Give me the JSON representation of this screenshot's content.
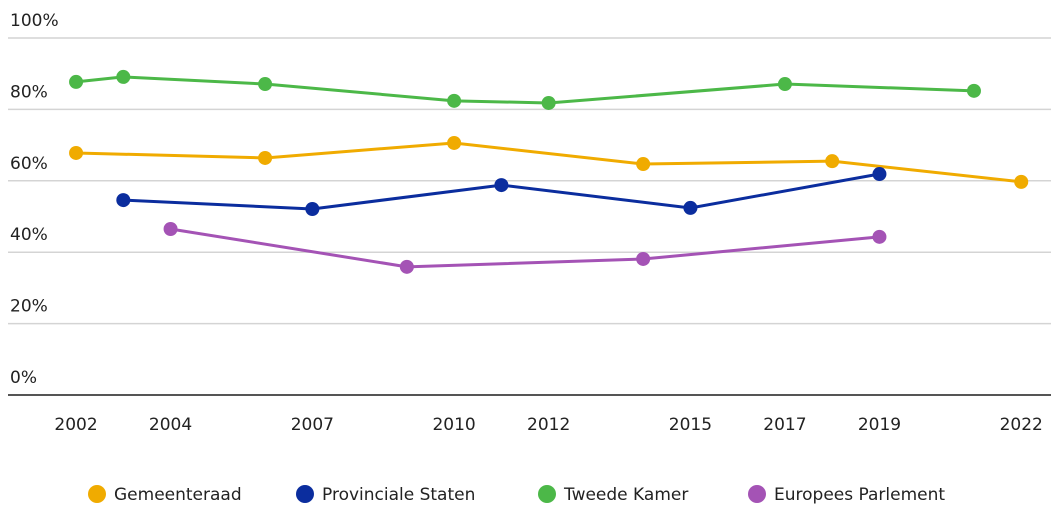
{
  "chart_data": {
    "type": "line",
    "xlim": [
      2000.56,
      2022.63
    ],
    "xticks": [
      2002,
      2004,
      2007,
      2010,
      2012,
      2015,
      2017,
      2019,
      2022
    ],
    "ylim": [
      0,
      100
    ],
    "yticks": [
      {
        "value": 0,
        "label": "0%"
      },
      {
        "value": 20,
        "label": "20%"
      },
      {
        "value": 40,
        "label": "40%"
      },
      {
        "value": 60,
        "label": "60%"
      },
      {
        "value": 80,
        "label": "80%"
      },
      {
        "value": 100,
        "label": "100%"
      }
    ],
    "grid": true,
    "legend": "bottom",
    "series": [
      {
        "name": "Gemeenteraad",
        "color": "#f0ab00",
        "x": [
          2002,
          2006,
          2010,
          2014,
          2018,
          2022
        ],
        "values": [
          67.8,
          66.4,
          70.6,
          64.7,
          65.5,
          59.7
        ]
      },
      {
        "name": "Provinciale Staten",
        "color": "#0b2d9e",
        "x": [
          2003,
          2007,
          2011,
          2015,
          2019
        ],
        "values": [
          54.6,
          52.1,
          58.8,
          52.4,
          61.9
        ]
      },
      {
        "name": "Tweede Kamer",
        "color": "#4cb848",
        "x": [
          2002,
          2003,
          2006,
          2010,
          2012,
          2017,
          2021
        ],
        "values": [
          87.7,
          89.1,
          87.1,
          82.4,
          81.8,
          87.1,
          85.2
        ]
      },
      {
        "name": "Europees Parlement",
        "color": "#a453b5",
        "x": [
          2004,
          2009,
          2014,
          2019
        ],
        "values": [
          46.5,
          35.9,
          38.1,
          44.3
        ]
      }
    ]
  }
}
